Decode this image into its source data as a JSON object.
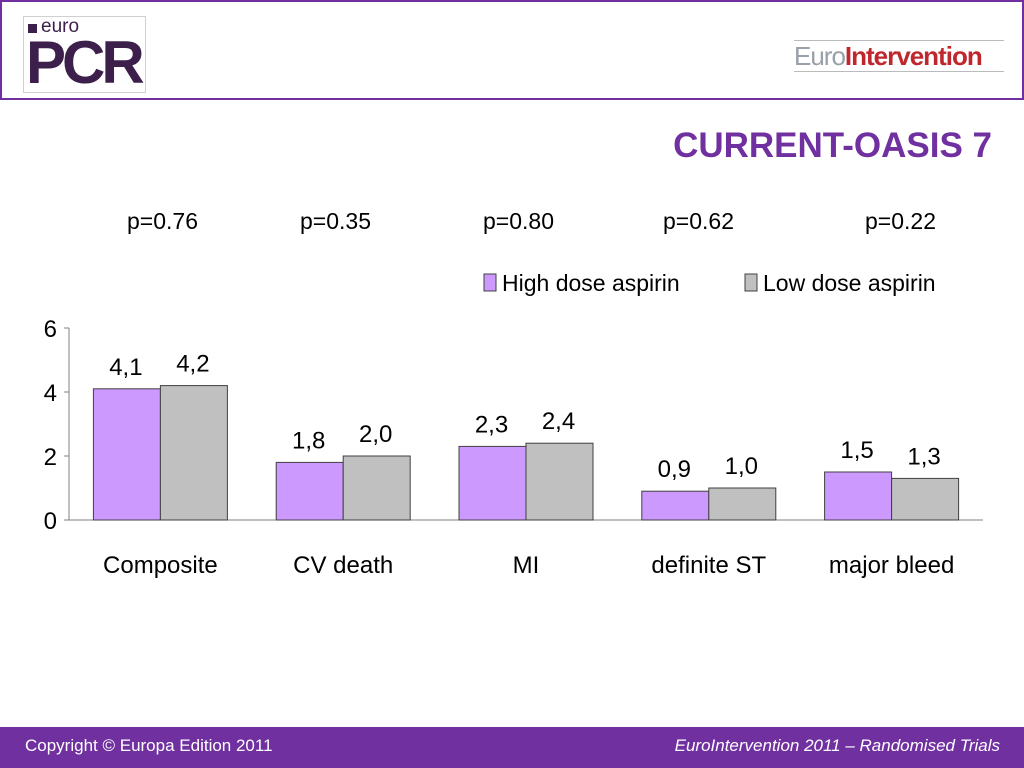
{
  "header": {
    "logo_left": {
      "prefix": "euro",
      "main": "PCR"
    },
    "logo_right": {
      "part1": "Euro",
      "part2": "Intervention"
    }
  },
  "slide": {
    "title": "CURRENT-OASIS 7",
    "p_values": [
      "p=0.76",
      "p=0.35",
      "p=0.80",
      "p=0.62",
      "p=0.22"
    ]
  },
  "chart_data": {
    "type": "bar",
    "categories": [
      "Composite",
      "CV death",
      "MI",
      "definite ST",
      "major bleed"
    ],
    "series": [
      {
        "name": "High dose aspirin",
        "values": [
          4.1,
          1.8,
          2.3,
          0.9,
          1.5
        ],
        "labels": [
          "4,1",
          "1,8",
          "2,3",
          "0,9",
          "1,5"
        ],
        "color": "#cc99ff"
      },
      {
        "name": "Low dose aspirin",
        "values": [
          4.2,
          2.0,
          2.4,
          1.0,
          1.3
        ],
        "labels": [
          "4,2",
          "2,0",
          "2,4",
          "1,0",
          "1,3"
        ],
        "color": "#c0c0c0"
      }
    ],
    "yticks": [
      0,
      2,
      4,
      6
    ],
    "ylim": [
      0,
      6
    ],
    "legend_position": "top-right",
    "grid": false
  },
  "footer": {
    "left": "Copyright © Europa Edition 2011",
    "right": "EuroIntervention 2011 – Randomised Trials"
  }
}
